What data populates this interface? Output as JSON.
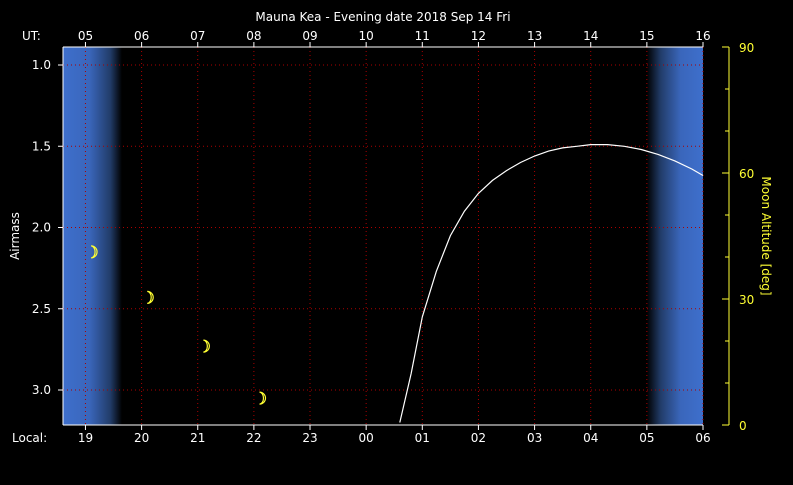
{
  "chart_data": {
    "type": "line",
    "title": "Mauna Kea - Evening date 2018 Sep 14  Fri",
    "ut_label": "UT:",
    "ut_ticks": [
      "05",
      "06",
      "07",
      "08",
      "09",
      "10",
      "11",
      "12",
      "13",
      "14",
      "15",
      "16"
    ],
    "local_label": "Local:",
    "local_ticks": [
      "19",
      "20",
      "21",
      "22",
      "23",
      "00",
      "01",
      "02",
      "03",
      "04",
      "05",
      "06"
    ],
    "ylabel": "Airmass",
    "y_ticks": [
      "1.0",
      "1.5",
      "2.0",
      "2.5",
      "3.0"
    ],
    "ylim": [
      1.0,
      3.2
    ],
    "y2label": "Moon Altitude [deg]",
    "y2_ticks": [
      "0",
      "30",
      "60",
      "90"
    ],
    "y2lim": [
      0,
      90
    ],
    "xlim_local_hours": [
      18.6,
      30.0
    ],
    "grid": true,
    "twilight": [
      {
        "name": "evening",
        "dark_begins_local": 19.65
      },
      {
        "name": "morning",
        "dark_ends_local": 29.0
      }
    ],
    "series": [
      {
        "x_local_hours": [
          24.6,
          24.8,
          25.0,
          25.25,
          25.5,
          25.75,
          26.0,
          26.25,
          26.5,
          26.75,
          27.0,
          27.25,
          27.5,
          27.75,
          28.0,
          28.3,
          28.6,
          28.9,
          29.2,
          29.5,
          29.8,
          30.0
        ],
        "airmass": [
          3.2,
          2.9,
          2.55,
          2.27,
          2.05,
          1.9,
          1.79,
          1.71,
          1.65,
          1.6,
          1.56,
          1.53,
          1.51,
          1.5,
          1.49,
          1.49,
          1.5,
          1.52,
          1.55,
          1.59,
          1.64,
          1.68
        ]
      }
    ],
    "moon_markers": [
      {
        "local_hour": 19.1,
        "airmass": 2.15
      },
      {
        "local_hour": 20.1,
        "airmass": 2.43
      },
      {
        "local_hour": 21.1,
        "airmass": 2.73
      },
      {
        "local_hour": 22.1,
        "airmass": 3.05
      }
    ],
    "colors": {
      "background": "#000000",
      "twilight": "#4a7fd4",
      "grid": "#aa0000",
      "curve": "#ffffff",
      "moon": "#ffff33",
      "right_axis": "#ffff33"
    }
  }
}
